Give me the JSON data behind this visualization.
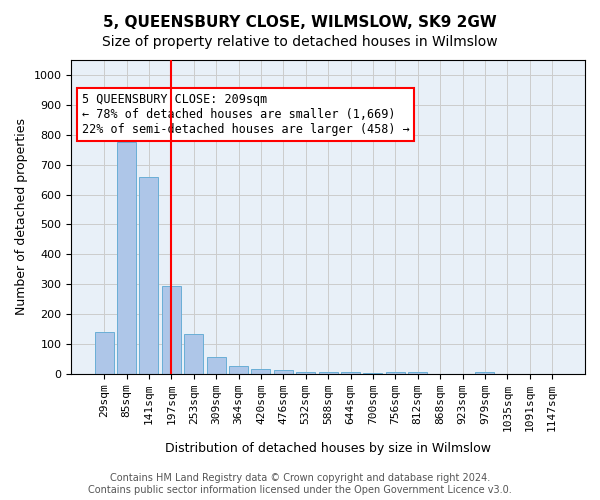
{
  "title": "5, QUEENSBURY CLOSE, WILMSLOW, SK9 2GW",
  "subtitle": "Size of property relative to detached houses in Wilmslow",
  "xlabel": "Distribution of detached houses by size in Wilmslow",
  "ylabel": "Number of detached properties",
  "categories": [
    "29sqm",
    "85sqm",
    "141sqm",
    "197sqm",
    "253sqm",
    "309sqm",
    "364sqm",
    "420sqm",
    "476sqm",
    "532sqm",
    "588sqm",
    "644sqm",
    "700sqm",
    "756sqm",
    "812sqm",
    "868sqm",
    "923sqm",
    "979sqm",
    "1035sqm",
    "1091sqm",
    "1147sqm"
  ],
  "values": [
    140,
    775,
    660,
    295,
    135,
    55,
    28,
    18,
    14,
    8,
    6,
    5,
    4,
    6,
    5,
    0,
    0,
    8,
    0,
    0,
    0
  ],
  "bar_color": "#aec6e8",
  "bar_edge_color": "#6aaed6",
  "vline_x": 3,
  "vline_color": "red",
  "annotation_text": "5 QUEENSBURY CLOSE: 209sqm\n← 78% of detached houses are smaller (1,669)\n22% of semi-detached houses are larger (458) →",
  "annotation_box_color": "white",
  "annotation_box_edge": "red",
  "ylim": [
    0,
    1050
  ],
  "yticks": [
    0,
    100,
    200,
    300,
    400,
    500,
    600,
    700,
    800,
    900,
    1000
  ],
  "grid_color": "#cccccc",
  "bg_color": "#e8f0f8",
  "footer": "Contains HM Land Registry data © Crown copyright and database right 2024.\nContains public sector information licensed under the Open Government Licence v3.0.",
  "title_fontsize": 11,
  "subtitle_fontsize": 10,
  "xlabel_fontsize": 9,
  "ylabel_fontsize": 9,
  "tick_fontsize": 8,
  "annotation_fontsize": 8.5,
  "footer_fontsize": 7
}
